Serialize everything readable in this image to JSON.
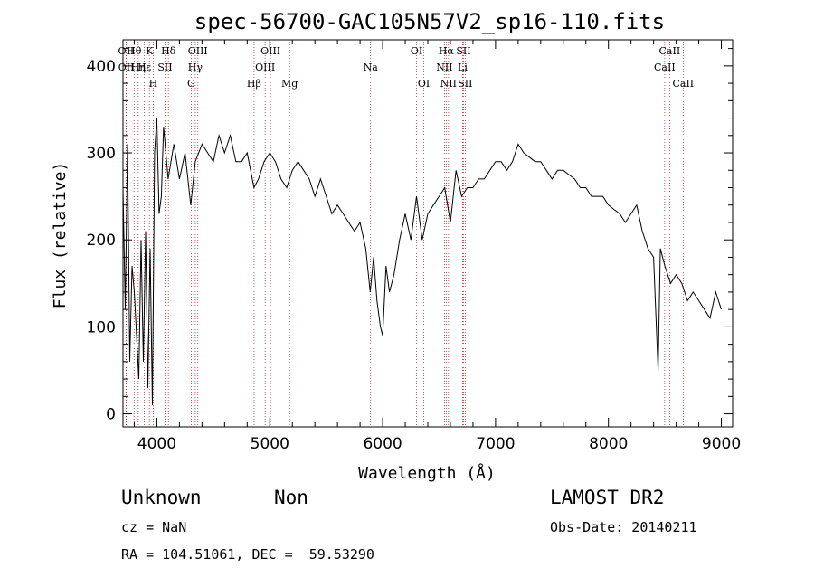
{
  "chart_data": {
    "type": "line",
    "title": "spec-56700-GAC105N57V2_sp16-110.fits",
    "xlabel": "Wavelength (Å)",
    "ylabel": "Flux (relative)",
    "xlim": [
      3700,
      9100
    ],
    "ylim": [
      -15,
      430
    ],
    "xticks": [
      4000,
      5000,
      6000,
      7000,
      8000,
      9000
    ],
    "yticks": [
      0,
      100,
      200,
      300,
      400
    ],
    "grid": false,
    "series": [
      {
        "x": [
          3700,
          3720,
          3740,
          3760,
          3780,
          3800,
          3820,
          3840,
          3860,
          3880,
          3900,
          3920,
          3940,
          3960,
          3980,
          4000,
          4020,
          4040,
          4060,
          4080,
          4100,
          4150,
          4200,
          4250,
          4300,
          4340,
          4400,
          4450,
          4500,
          4550,
          4600,
          4650,
          4700,
          4750,
          4800,
          4860,
          4900,
          4950,
          5000,
          5050,
          5100,
          5150,
          5200,
          5250,
          5300,
          5350,
          5400,
          5450,
          5500,
          5550,
          5600,
          5650,
          5700,
          5750,
          5800,
          5850,
          5890,
          5920,
          5950,
          5980,
          6000,
          6030,
          6060,
          6100,
          6150,
          6200,
          6250,
          6300,
          6350,
          6400,
          6450,
          6500,
          6550,
          6600,
          6650,
          6700,
          6750,
          6800,
          6850,
          6900,
          6950,
          7000,
          7050,
          7100,
          7150,
          7200,
          7250,
          7300,
          7350,
          7400,
          7450,
          7500,
          7550,
          7600,
          7650,
          7700,
          7750,
          7800,
          7850,
          7900,
          7950,
          8000,
          8050,
          8100,
          8150,
          8200,
          8250,
          8300,
          8350,
          8400,
          8440,
          8460,
          8500,
          8550,
          8600,
          8650,
          8700,
          8750,
          8800,
          8850,
          8900,
          8950,
          9000
        ],
        "y": [
          260,
          120,
          310,
          60,
          170,
          140,
          90,
          40,
          200,
          60,
          210,
          30,
          190,
          10,
          300,
          340,
          230,
          250,
          330,
          300,
          270,
          310,
          270,
          300,
          240,
          290,
          310,
          300,
          290,
          320,
          300,
          320,
          290,
          290,
          300,
          260,
          270,
          290,
          300,
          290,
          270,
          260,
          280,
          290,
          280,
          270,
          250,
          270,
          250,
          230,
          240,
          230,
          220,
          210,
          220,
          190,
          140,
          180,
          130,
          100,
          90,
          170,
          140,
          160,
          200,
          230,
          200,
          250,
          200,
          230,
          240,
          250,
          260,
          220,
          280,
          250,
          260,
          260,
          270,
          270,
          280,
          290,
          290,
          280,
          290,
          310,
          300,
          295,
          290,
          290,
          280,
          270,
          280,
          280,
          275,
          270,
          260,
          260,
          250,
          250,
          250,
          240,
          235,
          230,
          220,
          230,
          240,
          210,
          190,
          180,
          50,
          190,
          170,
          150,
          160,
          150,
          130,
          140,
          130,
          120,
          110,
          140,
          120
        ]
      }
    ],
    "line_labels": [
      {
        "text": "Hθ",
        "wave": 3798
      },
      {
        "text": "K",
        "wave": 3934
      },
      {
        "text": "Hδ",
        "wave": 4102
      },
      {
        "text": "OIII",
        "wave": 4363
      },
      {
        "text": "OIII",
        "wave": 5007
      },
      {
        "text": "OI",
        "wave": 6300
      },
      {
        "text": "Hα",
        "wave": 6563
      },
      {
        "text": "SII",
        "wave": 6716
      },
      {
        "text": "CaII",
        "wave": 8542
      },
      {
        "text": "OII",
        "wave": 3727
      },
      {
        "text": "Hε",
        "wave": 3889
      },
      {
        "text": "SII",
        "wave": 4072
      },
      {
        "text": "Hγ",
        "wave": 4340
      },
      {
        "text": "OIII",
        "wave": 4959
      },
      {
        "text": "Na",
        "wave": 5893
      },
      {
        "text": "NII",
        "wave": 6548
      },
      {
        "text": "Li",
        "wave": 6708
      },
      {
        "text": "CaII",
        "wave": 8498
      },
      {
        "text": "OII",
        "wave": 3729
      },
      {
        "text": "Hη",
        "wave": 3835
      },
      {
        "text": "H",
        "wave": 3968
      },
      {
        "text": "G",
        "wave": 4304
      },
      {
        "text": "Hβ",
        "wave": 4861
      },
      {
        "text": "Mg",
        "wave": 5175
      },
      {
        "text": "OI",
        "wave": 6364
      },
      {
        "text": "NII",
        "wave": 6583
      },
      {
        "text": "SII",
        "wave": 6731
      },
      {
        "text": "CaII",
        "wave": 8662
      }
    ]
  },
  "info": {
    "class": "Unknown",
    "subclass": "Non",
    "cz": "cz = NaN",
    "coords": "RA = 104.51061, DEC =  59.53290",
    "survey": "LAMOST DR2",
    "obs_date": "Obs-Date: 20140211"
  }
}
